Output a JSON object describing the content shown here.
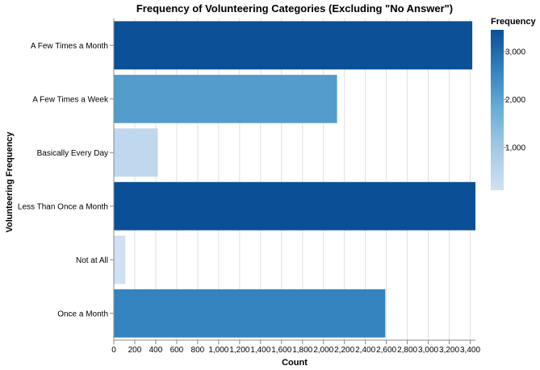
{
  "chart_data": {
    "type": "bar",
    "orientation": "horizontal",
    "title": "Frequency of Volunteering Categories (Excluding \"No Answer\")",
    "xlabel": "Count",
    "ylabel": "Volunteering Frequency",
    "categories": [
      "A Few Times a Month",
      "A Few Times a Week",
      "Basically Every Day",
      "Less Than Once a Month",
      "Not at All",
      "Once a Month"
    ],
    "values": [
      3420,
      2130,
      420,
      3450,
      110,
      2590
    ],
    "xlim": [
      0,
      3450
    ],
    "xticks": [
      0,
      200,
      400,
      600,
      800,
      1000,
      1200,
      1400,
      1600,
      1800,
      2000,
      2200,
      2400,
      2600,
      2800,
      3000,
      3200,
      3400
    ],
    "xtick_labels": [
      "0",
      "200",
      "400",
      "600",
      "800",
      "1,000",
      "1,200",
      "1,400",
      "1,600",
      "1,800",
      "2,000",
      "2,200",
      "2,400",
      "2,600",
      "2,800",
      "3,000",
      "3,200",
      "3,400"
    ],
    "grid": true,
    "legend": {
      "title": "Frequency",
      "placement": "right",
      "type": "gradient",
      "domain": [
        110,
        3450
      ],
      "ticks": [
        1000,
        2000,
        3000
      ],
      "tick_labels": [
        "1,000",
        "2,000",
        "3,000"
      ],
      "color_range": [
        "#cfe1f2",
        "#0b4f96"
      ]
    }
  }
}
